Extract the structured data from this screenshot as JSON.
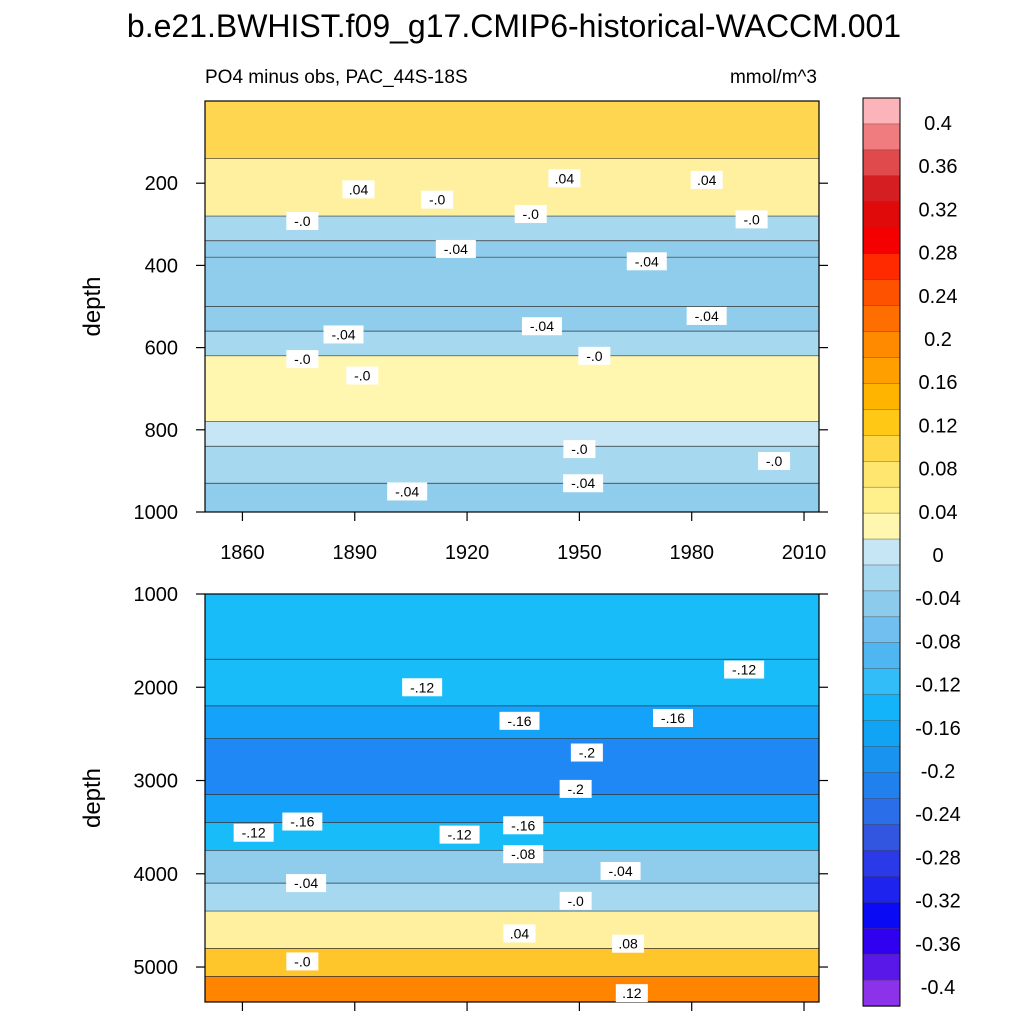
{
  "title": "b.e21.BWHIST.f09_g17.CMIP6-historical-WACCM.001",
  "subtitle_left": "PO4 minus obs, PAC_44S-18S",
  "subtitle_right": "mmol/m^3",
  "colorbar": {
    "labels": [
      "0.4",
      "0.36",
      "0.32",
      "0.28",
      "0.24",
      "0.2",
      "0.16",
      "0.12",
      "0.08",
      "0.04",
      "0",
      "-0.04",
      "-0.08",
      "-0.12",
      "-0.16",
      "-0.2",
      "-0.24",
      "-0.28",
      "-0.32",
      "-0.36",
      "-0.4"
    ],
    "colors": [
      "#fbb4b9",
      "#f07c80",
      "#e04a4d",
      "#d41e22",
      "#e00a0a",
      "#f40000",
      "#ff2a00",
      "#ff5200",
      "#ff6e00",
      "#ff8a00",
      "#ffa000",
      "#ffb400",
      "#ffc814",
      "#ffd84a",
      "#ffe66e",
      "#fff08c",
      "#fff6b0",
      "#c6e5f5",
      "#a6d8f0",
      "#8ccbec",
      "#70bff0",
      "#50b6f2",
      "#32bcf8",
      "#14b4fa",
      "#12a4f4",
      "#1894f0",
      "#2080ee",
      "#2a6eea",
      "#3256e0",
      "#2a3ae8",
      "#1e24ee",
      "#0a0af4",
      "#3000f0",
      "#5a18e8",
      "#8c32ea"
    ]
  },
  "chart_data": [
    {
      "type": "heatmap",
      "name": "upper-panel",
      "title": "PO4 minus obs, PAC_44S-18S",
      "units": "mmol/m^3",
      "xlabel": "",
      "ylabel": "depth",
      "xlim": [
        1850,
        2014
      ],
      "ylim": [
        1000,
        0
      ],
      "xticks": [
        "1860",
        "1890",
        "1920",
        "1950",
        "1980",
        "2010"
      ],
      "xtick_values": [
        1860,
        1890,
        1920,
        1950,
        1980,
        2010
      ],
      "yticks": [
        "200",
        "400",
        "600",
        "800",
        "1000"
      ],
      "ytick_values": [
        200,
        400,
        600,
        800,
        1000
      ],
      "bands": [
        {
          "top": 0,
          "bottom": 140,
          "value": 0.06
        },
        {
          "top": 140,
          "bottom": 280,
          "value": 0.02
        },
        {
          "top": 280,
          "bottom": 340,
          "value": -0.02
        },
        {
          "top": 340,
          "bottom": 380,
          "value": -0.04
        },
        {
          "top": 380,
          "bottom": 500,
          "value": -0.06
        },
        {
          "top": 500,
          "bottom": 560,
          "value": -0.04
        },
        {
          "top": 560,
          "bottom": 620,
          "value": -0.02
        },
        {
          "top": 620,
          "bottom": 780,
          "value": 0.01
        },
        {
          "top": 780,
          "bottom": 840,
          "value": -0.01
        },
        {
          "top": 840,
          "bottom": 930,
          "value": -0.03
        },
        {
          "top": 930,
          "bottom": 1000,
          "value": -0.04
        }
      ],
      "contour_labels": [
        {
          "text": ".04",
          "x": 1891,
          "y": 215
        },
        {
          "text": "-.0",
          "x": 1912,
          "y": 240
        },
        {
          "text": ".04",
          "x": 1946,
          "y": 188
        },
        {
          "text": "-.0",
          "x": 1937,
          "y": 275
        },
        {
          "text": ".04",
          "x": 1984,
          "y": 192
        },
        {
          "text": "-.0",
          "x": 1876,
          "y": 292
        },
        {
          "text": "-.0",
          "x": 1996,
          "y": 288
        },
        {
          "text": "-.04",
          "x": 1917,
          "y": 360
        },
        {
          "text": "-.04",
          "x": 1968,
          "y": 390
        },
        {
          "text": "-.04",
          "x": 1887,
          "y": 568
        },
        {
          "text": "-.04",
          "x": 1940,
          "y": 548
        },
        {
          "text": "-.04",
          "x": 1984,
          "y": 523
        },
        {
          "text": "-.0",
          "x": 1876,
          "y": 628
        },
        {
          "text": "-.0",
          "x": 1892,
          "y": 668
        },
        {
          "text": "-.0",
          "x": 1954,
          "y": 620
        },
        {
          "text": "-.0",
          "x": 1950,
          "y": 847
        },
        {
          "text": "-.0",
          "x": 2002,
          "y": 876
        },
        {
          "text": "-.04",
          "x": 1904,
          "y": 950
        },
        {
          "text": "-.04",
          "x": 1951,
          "y": 930
        }
      ]
    },
    {
      "type": "heatmap",
      "name": "lower-panel",
      "xlabel": "",
      "ylabel": "depth",
      "xlim": [
        1850,
        2014
      ],
      "ylim": [
        5375,
        1000
      ],
      "yticks": [
        "1000",
        "2000",
        "3000",
        "4000",
        "5000"
      ],
      "ytick_values": [
        1000,
        2000,
        3000,
        4000,
        5000
      ],
      "bands": [
        {
          "top": 1000,
          "bottom": 1700,
          "value": -0.1
        },
        {
          "top": 1700,
          "bottom": 2200,
          "value": -0.13
        },
        {
          "top": 2200,
          "bottom": 2550,
          "value": -0.17
        },
        {
          "top": 2550,
          "bottom": 3150,
          "value": -0.21
        },
        {
          "top": 3150,
          "bottom": 3450,
          "value": -0.17
        },
        {
          "top": 3450,
          "bottom": 3750,
          "value": -0.12
        },
        {
          "top": 3750,
          "bottom": 4100,
          "value": -0.06
        },
        {
          "top": 4100,
          "bottom": 4400,
          "value": -0.02
        },
        {
          "top": 4400,
          "bottom": 4800,
          "value": 0.03
        },
        {
          "top": 4800,
          "bottom": 5100,
          "value": 0.08
        },
        {
          "top": 5100,
          "bottom": 5375,
          "value": 0.14
        }
      ],
      "contour_labels": [
        {
          "text": "-.12",
          "x": 1908,
          "y": 2000
        },
        {
          "text": "-.12",
          "x": 1994,
          "y": 1810
        },
        {
          "text": "-.16",
          "x": 1934,
          "y": 2360
        },
        {
          "text": "-.16",
          "x": 1975,
          "y": 2330
        },
        {
          "text": "-.2",
          "x": 1952,
          "y": 2700
        },
        {
          "text": "-.2",
          "x": 1949,
          "y": 3090
        },
        {
          "text": "-.16",
          "x": 1876,
          "y": 3440
        },
        {
          "text": "-.16",
          "x": 1935,
          "y": 3480
        },
        {
          "text": "-.12",
          "x": 1863,
          "y": 3560
        },
        {
          "text": "-.12",
          "x": 1918,
          "y": 3580
        },
        {
          "text": "-.08",
          "x": 1935,
          "y": 3790
        },
        {
          "text": "-.04",
          "x": 1877,
          "y": 4100
        },
        {
          "text": "-.04",
          "x": 1961,
          "y": 3970
        },
        {
          "text": "-.0",
          "x": 1949,
          "y": 4290
        },
        {
          "text": ".04",
          "x": 1934,
          "y": 4640
        },
        {
          "text": ".08",
          "x": 1963,
          "y": 4750
        },
        {
          "text": "-.0",
          "x": 1876,
          "y": 4940
        },
        {
          "text": ".12",
          "x": 1964,
          "y": 5280
        }
      ]
    }
  ]
}
